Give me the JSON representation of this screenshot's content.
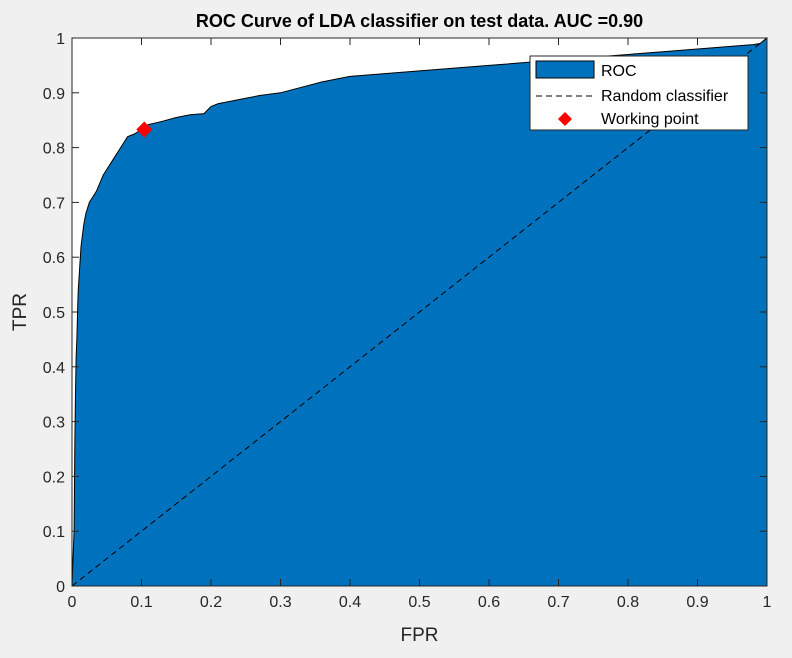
{
  "chart_data": {
    "type": "area",
    "title": "ROC Curve of LDA classifier on test data. AUC =0.90",
    "xlabel": "FPR",
    "ylabel": "TPR",
    "xlim": [
      0,
      1
    ],
    "ylim": [
      0,
      1
    ],
    "xticks": [
      0,
      0.1,
      0.2,
      0.3,
      0.4,
      0.5,
      0.6,
      0.7,
      0.8,
      0.9,
      1
    ],
    "yticks": [
      0,
      0.1,
      0.2,
      0.3,
      0.4,
      0.5,
      0.6,
      0.7,
      0.8,
      0.9,
      1
    ],
    "xtick_labels": [
      "0",
      "0.1",
      "0.2",
      "0.3",
      "0.4",
      "0.5",
      "0.6",
      "0.7",
      "0.8",
      "0.9",
      "1"
    ],
    "ytick_labels": [
      "0",
      "0.1",
      "0.2",
      "0.3",
      "0.4",
      "0.5",
      "0.6",
      "0.7",
      "0.8",
      "0.9",
      "1"
    ],
    "grid": false,
    "legend_position": "top-right",
    "series": [
      {
        "name": "ROC",
        "kind": "area",
        "color": "#0072BD",
        "x": [
          0,
          0.003,
          0.004,
          0.005,
          0.006,
          0.007,
          0.008,
          0.009,
          0.01,
          0.011,
          0.012,
          0.013,
          0.015,
          0.017,
          0.02,
          0.025,
          0.03,
          0.035,
          0.04,
          0.045,
          0.05,
          0.06,
          0.07,
          0.08,
          0.09,
          0.1,
          0.105,
          0.11,
          0.12,
          0.13,
          0.15,
          0.17,
          0.19,
          0.2,
          0.21,
          0.23,
          0.25,
          0.27,
          0.3,
          0.33,
          0.36,
          0.4,
          0.45,
          0.5,
          0.55,
          0.6,
          0.65,
          0.7,
          0.75,
          0.8,
          0.85,
          0.9,
          0.95,
          0.98,
          0.99,
          1.0
        ],
        "y": [
          0,
          0.1,
          0.25,
          0.35,
          0.42,
          0.45,
          0.5,
          0.54,
          0.56,
          0.58,
          0.6,
          0.62,
          0.64,
          0.66,
          0.68,
          0.7,
          0.71,
          0.72,
          0.735,
          0.75,
          0.76,
          0.78,
          0.8,
          0.82,
          0.825,
          0.833,
          0.838,
          0.842,
          0.845,
          0.848,
          0.855,
          0.86,
          0.862,
          0.875,
          0.88,
          0.885,
          0.89,
          0.895,
          0.9,
          0.91,
          0.92,
          0.93,
          0.935,
          0.94,
          0.945,
          0.95,
          0.955,
          0.96,
          0.965,
          0.97,
          0.975,
          0.98,
          0.985,
          0.988,
          0.99,
          1.0
        ]
      },
      {
        "name": "Random classifier",
        "kind": "line",
        "style": "dashed",
        "color": "#000000",
        "x": [
          0,
          1
        ],
        "y": [
          0,
          1
        ]
      },
      {
        "name": "Working point",
        "kind": "marker",
        "color": "#FF0000",
        "x": [
          0.104
        ],
        "y": [
          0.833
        ]
      }
    ]
  }
}
